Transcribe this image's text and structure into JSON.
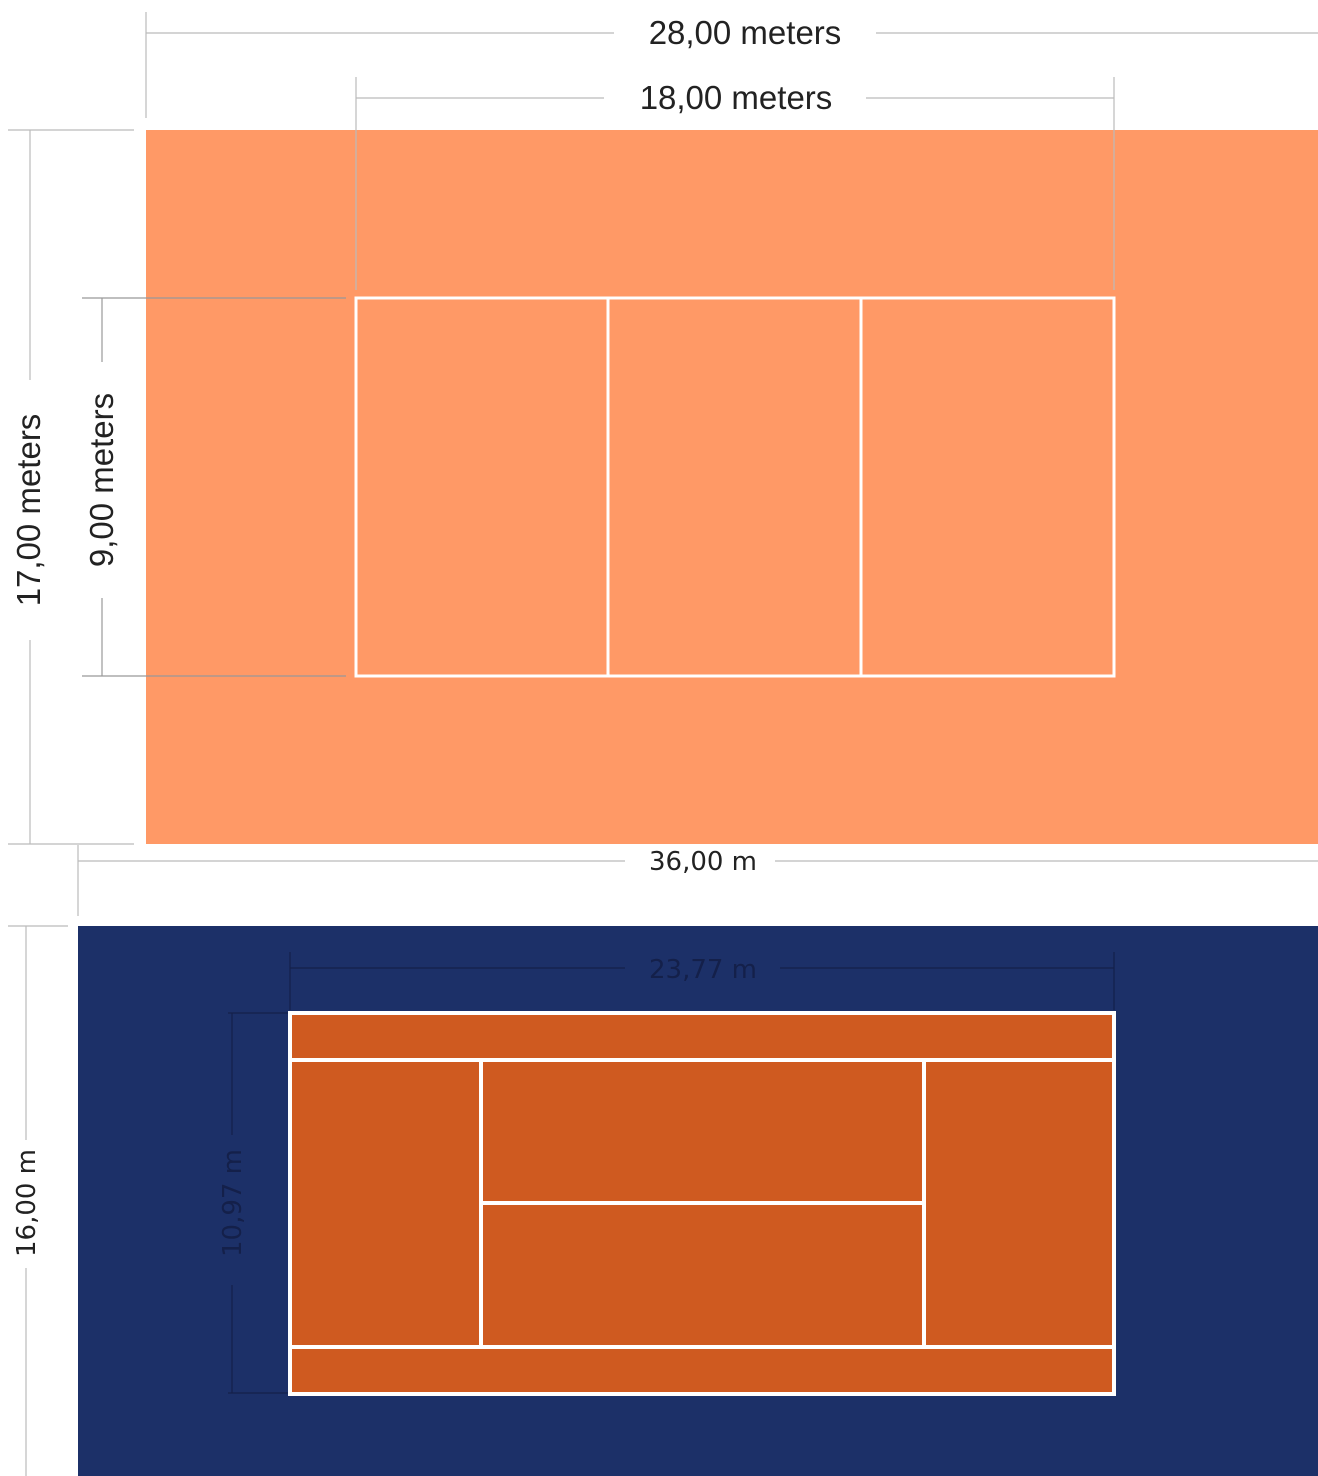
{
  "volleyball": {
    "total_width_label": "28,00 meters",
    "court_length_label": "18,00 meters",
    "total_height_label": "17,00 meters",
    "court_width_label": "9,00 meters",
    "surround_color": "#FF9966",
    "line_color": "#FFFFFF"
  },
  "tennis": {
    "total_width_label": "36,00 m",
    "court_length_label": "23,77 m",
    "total_height_label": "16,00 m",
    "court_width_label": "10,97 m",
    "surround_color": "#1C3068",
    "court_color": "#CF5A20",
    "line_color": "#FFFFFF"
  },
  "dimension_line_color": "#BBBBBB"
}
